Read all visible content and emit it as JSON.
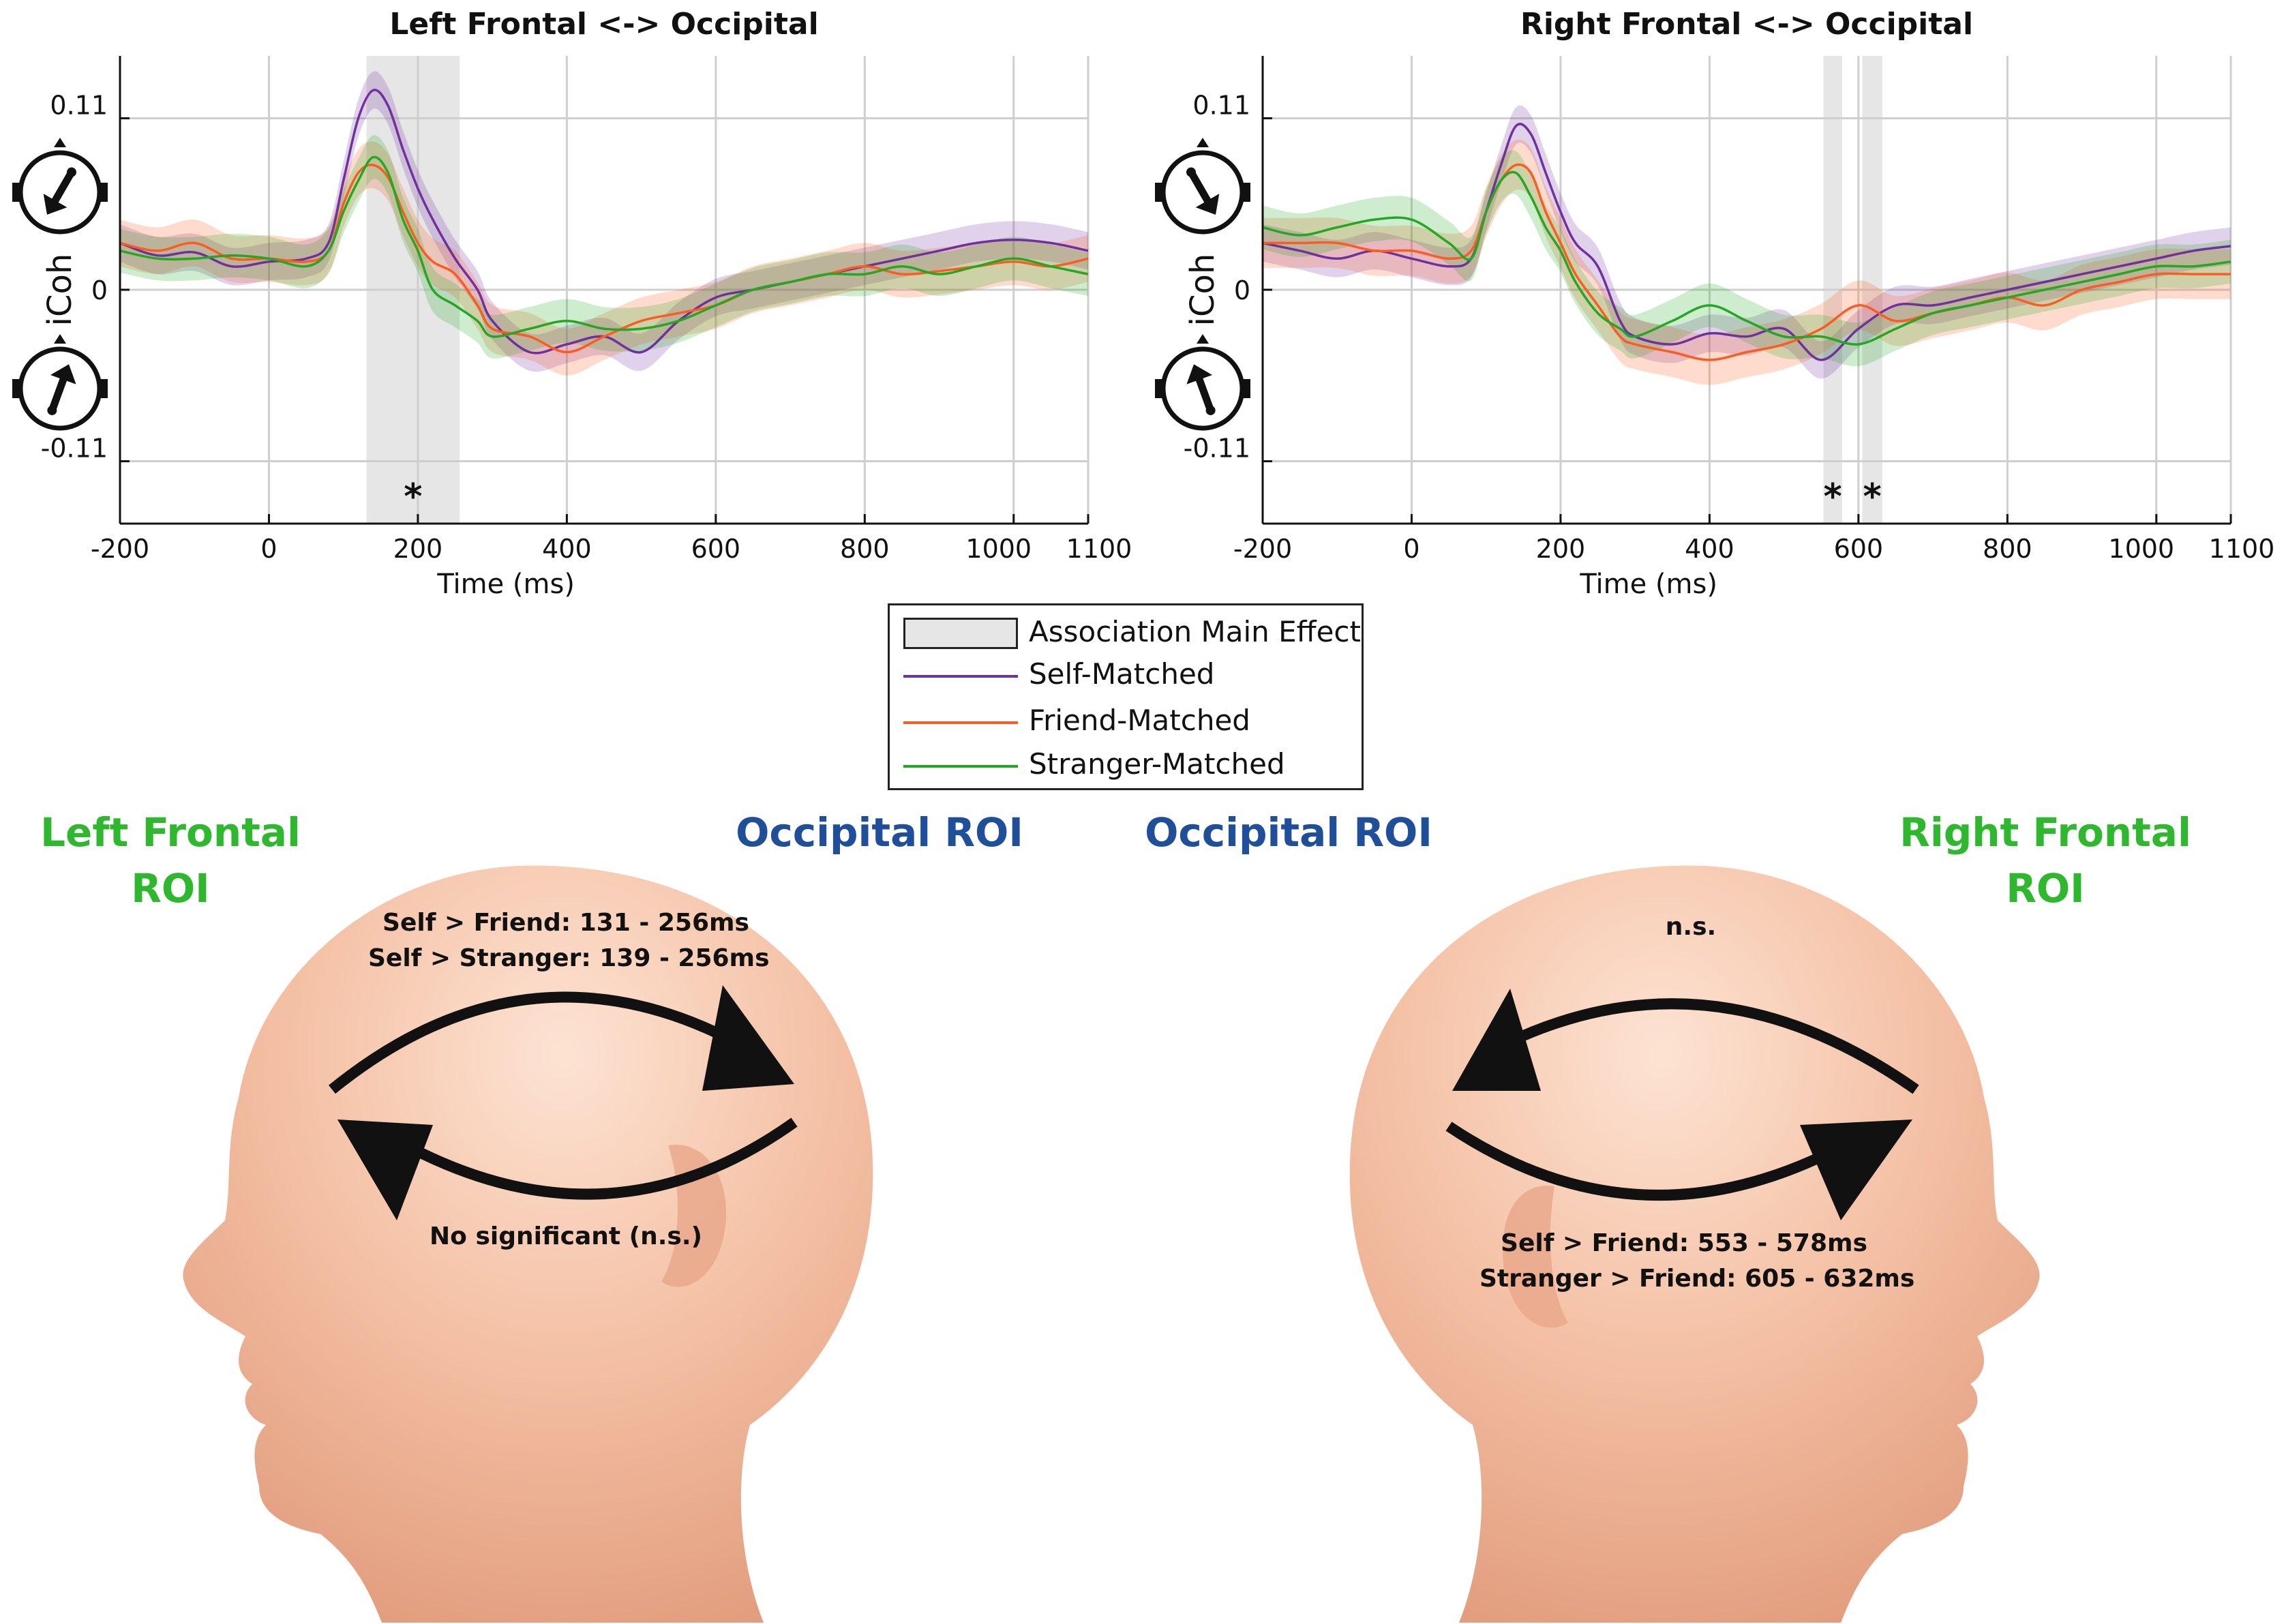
{
  "chart_data": [
    {
      "type": "line",
      "title": "Left Frontal <-> Occipital",
      "xlabel": "Time (ms)",
      "ylabel": "iCoh",
      "xlim": [
        -200,
        1100
      ],
      "ylim": [
        -0.15,
        0.15
      ],
      "xticks": [
        -200,
        0,
        200,
        400,
        600,
        800,
        1000,
        1100
      ],
      "xtick_labels": [
        "-200",
        "0",
        "200",
        "400",
        "600",
        "800",
        "1000",
        "1100"
      ],
      "yticks": [
        -0.11,
        0,
        0.11
      ],
      "ytick_labels": [
        "-0.11",
        "0",
        "0.11"
      ],
      "grid": true,
      "significance_windows": [
        {
          "start": 131,
          "end": 256,
          "marker": "*"
        }
      ],
      "x": [
        -200,
        -150,
        -100,
        -50,
        0,
        50,
        80,
        100,
        120,
        140,
        160,
        180,
        200,
        220,
        250,
        280,
        300,
        350,
        400,
        450,
        500,
        550,
        600,
        650,
        700,
        750,
        800,
        850,
        900,
        950,
        1000,
        1050,
        1100
      ],
      "series": [
        {
          "name": "Self-Matched",
          "color": "#7030a0",
          "band": 0.012,
          "values": [
            0.03,
            0.022,
            0.024,
            0.015,
            0.018,
            0.02,
            0.03,
            0.07,
            0.11,
            0.128,
            0.118,
            0.09,
            0.065,
            0.045,
            0.02,
            0.0,
            -0.02,
            -0.04,
            -0.035,
            -0.03,
            -0.04,
            -0.02,
            -0.005,
            0.0,
            0.005,
            0.01,
            0.015,
            0.02,
            0.025,
            0.03,
            0.032,
            0.03,
            0.025
          ]
        },
        {
          "name": "Friend-Matched",
          "color": "#ff5a1f",
          "band": 0.015,
          "values": [
            0.03,
            0.025,
            0.03,
            0.02,
            0.02,
            0.018,
            0.025,
            0.055,
            0.075,
            0.08,
            0.072,
            0.05,
            0.03,
            0.018,
            0.01,
            -0.01,
            -0.025,
            -0.03,
            -0.04,
            -0.03,
            -0.02,
            -0.015,
            -0.01,
            0.0,
            0.005,
            0.01,
            0.015,
            0.01,
            0.012,
            0.015,
            0.018,
            0.015,
            0.02
          ]
        },
        {
          "name": "Stranger-Matched",
          "color": "#22a822",
          "band": 0.014,
          "values": [
            0.025,
            0.02,
            0.02,
            0.022,
            0.02,
            0.015,
            0.025,
            0.05,
            0.07,
            0.085,
            0.075,
            0.045,
            0.025,
            0.0,
            -0.01,
            -0.02,
            -0.03,
            -0.025,
            -0.02,
            -0.025,
            -0.025,
            -0.02,
            -0.01,
            0.0,
            0.005,
            0.01,
            0.01,
            0.015,
            0.01,
            0.015,
            0.02,
            0.015,
            0.01
          ]
        }
      ]
    },
    {
      "type": "line",
      "title": "Right Frontal <-> Occipital",
      "xlabel": "Time (ms)",
      "ylabel": "iCoh",
      "xlim": [
        -200,
        1100
      ],
      "ylim": [
        -0.15,
        0.15
      ],
      "xticks": [
        -200,
        0,
        200,
        400,
        600,
        800,
        1000,
        1100
      ],
      "xtick_labels": [
        "-200",
        "0",
        "200",
        "400",
        "600",
        "800",
        "1000",
        "1100"
      ],
      "yticks": [
        -0.11,
        0,
        0.11
      ],
      "ytick_labels": [
        "-0.11",
        "0",
        "0.11"
      ],
      "grid": true,
      "significance_windows": [
        {
          "start": 553,
          "end": 578,
          "marker": "*"
        },
        {
          "start": 605,
          "end": 632,
          "marker": "*"
        }
      ],
      "x": [
        -200,
        -150,
        -100,
        -50,
        0,
        50,
        80,
        100,
        120,
        140,
        160,
        180,
        200,
        220,
        250,
        280,
        300,
        350,
        400,
        450,
        500,
        550,
        600,
        650,
        700,
        750,
        800,
        850,
        900,
        950,
        1000,
        1050,
        1100
      ],
      "series": [
        {
          "name": "Self-Matched",
          "color": "#7030a0",
          "band": 0.012,
          "values": [
            0.03,
            0.025,
            0.02,
            0.025,
            0.02,
            0.015,
            0.02,
            0.05,
            0.08,
            0.105,
            0.1,
            0.075,
            0.05,
            0.03,
            0.015,
            -0.02,
            -0.03,
            -0.035,
            -0.028,
            -0.03,
            -0.025,
            -0.045,
            -0.025,
            -0.01,
            -0.01,
            -0.005,
            0.0,
            0.005,
            0.01,
            0.015,
            0.02,
            0.025,
            0.028
          ]
        },
        {
          "name": "Friend-Matched",
          "color": "#ff5a1f",
          "band": 0.016,
          "values": [
            0.03,
            0.03,
            0.03,
            0.025,
            0.025,
            0.02,
            0.025,
            0.05,
            0.07,
            0.08,
            0.075,
            0.05,
            0.03,
            0.01,
            -0.01,
            -0.03,
            -0.035,
            -0.04,
            -0.045,
            -0.04,
            -0.035,
            -0.025,
            -0.01,
            -0.02,
            -0.015,
            -0.01,
            -0.005,
            -0.01,
            0.0,
            0.005,
            0.01,
            0.01,
            0.01
          ]
        },
        {
          "name": "Stranger-Matched",
          "color": "#22a822",
          "band": 0.014,
          "values": [
            0.04,
            0.035,
            0.04,
            0.045,
            0.045,
            0.03,
            0.02,
            0.05,
            0.07,
            0.075,
            0.06,
            0.04,
            0.025,
            0.005,
            -0.015,
            -0.025,
            -0.03,
            -0.02,
            -0.01,
            -0.02,
            -0.03,
            -0.03,
            -0.035,
            -0.025,
            -0.015,
            -0.01,
            -0.005,
            0.0,
            0.005,
            0.01,
            0.015,
            0.015,
            0.018
          ]
        }
      ]
    }
  ],
  "plots": [
    {
      "title": "Left Frontal <-> Occipital",
      "xlabel": "Time (ms)",
      "ylabel": "iCoh"
    },
    {
      "title": "Right Frontal <-> Occipital",
      "xlabel": "Time (ms)",
      "ylabel": "iCoh"
    }
  ],
  "legend": {
    "shade_label": "Association Main Effect",
    "items": [
      {
        "label": "Self-Matched",
        "color": "#7030a0"
      },
      {
        "label": "Friend-Matched",
        "color": "#ff5a1f"
      },
      {
        "label": "Stranger-Matched",
        "color": "#22a822"
      }
    ]
  },
  "colors": {
    "roi_frontal": "#2db82d",
    "roi_occipital": "#1f4e9b",
    "shade": "#e6e6e6",
    "skin": "#f2b89a"
  },
  "heads": {
    "left": {
      "frontal_label_line1": "Left Frontal",
      "frontal_label_line2": "ROI",
      "occipital_label": "Occipital ROI",
      "top_annotation_line1": "Self > Friend: 131 - 256ms",
      "top_annotation_line2": "Self > Stranger: 139 - 256ms",
      "bottom_annotation": "No significant (n.s.)"
    },
    "right": {
      "frontal_label_line1": "Right Frontal",
      "frontal_label_line2": "ROI",
      "occipital_label": "Occipital ROI",
      "top_annotation": "n.s.",
      "bottom_annotation_line1": "Self > Friend: 553 - 578ms",
      "bottom_annotation_line2": "Stranger > Friend: 605 - 632ms"
    }
  }
}
